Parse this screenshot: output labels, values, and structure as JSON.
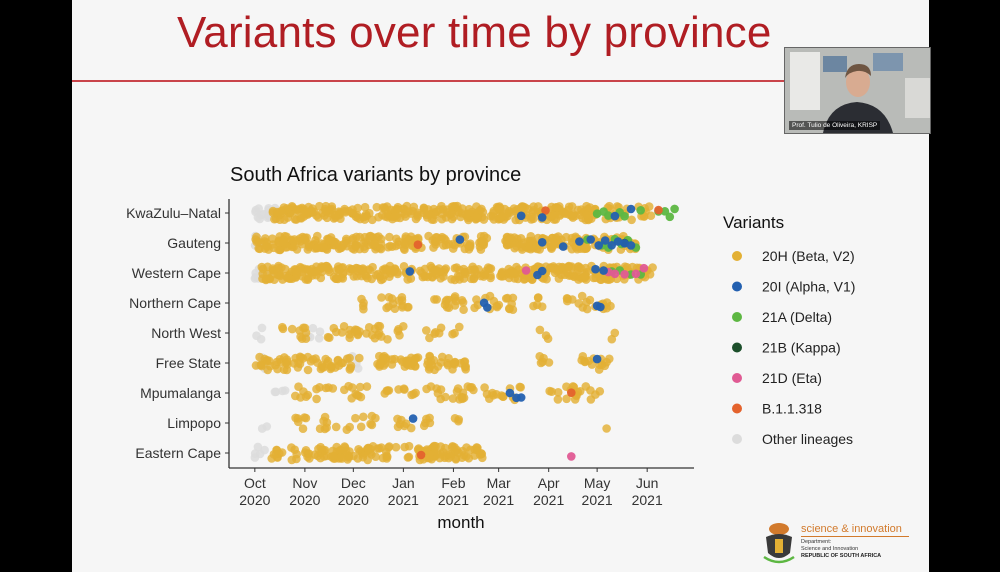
{
  "slide": {
    "title": "Variants over time by province"
  },
  "webcam": {
    "caption": "Prof. Tulio de Oliveira, KRISP"
  },
  "logo": {
    "tagline": "science & innovation",
    "dept": "Department:\nScience and Innovation",
    "country": "REPUBLIC OF SOUTH AFRICA"
  },
  "chart_data": {
    "type": "scatter",
    "title": "South Africa variants by province",
    "xlabel": "month",
    "ylabel": "",
    "x_ticks": [
      {
        "date": "2020-10-01",
        "label": [
          "Oct",
          "2020"
        ]
      },
      {
        "date": "2020-11-01",
        "label": [
          "Nov",
          "2020"
        ]
      },
      {
        "date": "2020-12-01",
        "label": [
          "Dec",
          "2020"
        ]
      },
      {
        "date": "2021-01-01",
        "label": [
          "Jan",
          "2021"
        ]
      },
      {
        "date": "2021-02-01",
        "label": [
          "Feb",
          "2021"
        ]
      },
      {
        "date": "2021-03-01",
        "label": [
          "Mar",
          "2021"
        ]
      },
      {
        "date": "2021-04-01",
        "label": [
          "Apr",
          "2021"
        ]
      },
      {
        "date": "2021-05-01",
        "label": [
          "May",
          "2021"
        ]
      },
      {
        "date": "2021-06-01",
        "label": [
          "Jun",
          "2021"
        ]
      }
    ],
    "xlim": [
      "2020-09-15",
      "2021-06-30"
    ],
    "categories": [
      "KwaZulu–Natal",
      "Gauteng",
      "Western Cape",
      "Northern Cape",
      "North West",
      "Free State",
      "Mpumalanga",
      "Limpopo",
      "Eastern Cape"
    ],
    "legend": {
      "title": "Variants",
      "placement": "right",
      "items": [
        {
          "name": "20H (Beta, V2)",
          "color": "#e3b034"
        },
        {
          "name": "20I (Alpha, V1)",
          "color": "#2360b0"
        },
        {
          "name": "21A (Delta)",
          "color": "#5db742"
        },
        {
          "name": "21B (Kappa)",
          "color": "#1c4f2b"
        },
        {
          "name": "21D (Eta)",
          "color": "#e05a93"
        },
        {
          "name": "B.1.1.318",
          "color": "#e4632d"
        },
        {
          "name": "Other lineages",
          "color": "#dcdcdc"
        }
      ]
    },
    "series": [
      {
        "name": "20H (Beta, V2)",
        "ranges": [
          [
            "KwaZulu–Natal",
            "2020-10-12",
            "2021-02-20",
            190
          ],
          [
            "KwaZulu–Natal",
            "2021-02-22",
            "2021-04-30",
            110
          ],
          [
            "KwaZulu–Natal",
            "2021-05-05",
            "2021-06-05",
            25
          ],
          [
            "Gauteng",
            "2020-10-01",
            "2021-02-22",
            200
          ],
          [
            "Gauteng",
            "2021-03-05",
            "2021-04-25",
            90
          ],
          [
            "Gauteng",
            "2021-04-28",
            "2021-05-25",
            30
          ],
          [
            "Western Cape",
            "2020-10-05",
            "2021-02-25",
            190
          ],
          [
            "Western Cape",
            "2021-03-01",
            "2021-05-15",
            120
          ],
          [
            "Western Cape",
            "2021-05-15",
            "2021-06-05",
            20
          ],
          [
            "Northern Cape",
            "2020-12-03",
            "2020-12-08",
            4
          ],
          [
            "Northern Cape",
            "2020-12-18",
            "2021-01-05",
            14
          ],
          [
            "Northern Cape",
            "2021-01-20",
            "2021-02-18",
            18
          ],
          [
            "Northern Cape",
            "2021-02-20",
            "2021-03-10",
            14
          ],
          [
            "Northern Cape",
            "2021-03-22",
            "2021-03-30",
            5
          ],
          [
            "Northern Cape",
            "2021-04-10",
            "2021-05-10",
            18
          ],
          [
            "North West",
            "2020-10-18",
            "2020-11-10",
            10
          ],
          [
            "North West",
            "2020-11-15",
            "2021-01-02",
            30
          ],
          [
            "North West",
            "2021-01-15",
            "2021-01-25",
            6
          ],
          [
            "North West",
            "2021-01-30",
            "2021-02-05",
            3
          ],
          [
            "North West",
            "2021-03-25",
            "2021-04-02",
            3
          ],
          [
            "North West",
            "2021-05-10",
            "2021-05-12",
            2
          ],
          [
            "Free State",
            "2020-10-01",
            "2020-12-05",
            60
          ],
          [
            "Free State",
            "2020-12-15",
            "2021-02-10",
            60
          ],
          [
            "Free State",
            "2021-03-25",
            "2021-04-02",
            5
          ],
          [
            "Free State",
            "2021-04-20",
            "2021-05-10",
            14
          ],
          [
            "Mpumalanga",
            "2020-10-25",
            "2020-11-20",
            12
          ],
          [
            "Mpumalanga",
            "2020-11-25",
            "2020-12-10",
            10
          ],
          [
            "Mpumalanga",
            "2020-12-20",
            "2021-01-10",
            10
          ],
          [
            "Mpumalanga",
            "2021-01-15",
            "2021-02-15",
            20
          ],
          [
            "Mpumalanga",
            "2021-02-20",
            "2021-03-15",
            14
          ],
          [
            "Mpumalanga",
            "2021-04-01",
            "2021-05-05",
            20
          ],
          [
            "Limpopo",
            "2020-10-25",
            "2020-11-05",
            6
          ],
          [
            "Limpopo",
            "2020-11-10",
            "2020-12-15",
            16
          ],
          [
            "Limpopo",
            "2020-12-28",
            "2021-01-25",
            12
          ],
          [
            "Limpopo",
            "2021-01-30",
            "2021-02-10",
            3
          ],
          [
            "Limpopo",
            "2021-05-05",
            "2021-05-08",
            1
          ],
          [
            "Eastern Cape",
            "2020-10-10",
            "2020-10-30",
            14
          ],
          [
            "Eastern Cape",
            "2020-11-01",
            "2020-12-25",
            70
          ],
          [
            "Eastern Cape",
            "2020-12-25",
            "2021-01-05",
            5
          ],
          [
            "Eastern Cape",
            "2021-01-10",
            "2021-02-20",
            60
          ]
        ]
      },
      {
        "name": "20I (Alpha, V1)",
        "points": [
          [
            "KwaZulu–Natal",
            "2021-03-15"
          ],
          [
            "KwaZulu–Natal",
            "2021-03-28"
          ],
          [
            "KwaZulu–Natal",
            "2021-05-12"
          ],
          [
            "KwaZulu–Natal",
            "2021-05-22"
          ],
          [
            "Gauteng",
            "2021-02-05"
          ],
          [
            "Gauteng",
            "2021-03-28"
          ],
          [
            "Gauteng",
            "2021-04-10"
          ],
          [
            "Gauteng",
            "2021-04-20"
          ],
          [
            "Gauteng",
            "2021-04-27"
          ],
          [
            "Gauteng",
            "2021-05-02"
          ],
          [
            "Gauteng",
            "2021-05-06"
          ],
          [
            "Gauteng",
            "2021-05-10"
          ],
          [
            "Gauteng",
            "2021-05-14"
          ],
          [
            "Gauteng",
            "2021-05-18"
          ],
          [
            "Gauteng",
            "2021-05-22"
          ],
          [
            "Western Cape",
            "2021-01-05"
          ],
          [
            "Western Cape",
            "2021-03-25"
          ],
          [
            "Western Cape",
            "2021-03-28"
          ],
          [
            "Western Cape",
            "2021-04-30"
          ],
          [
            "Western Cape",
            "2021-05-05"
          ],
          [
            "Northern Cape",
            "2021-02-20"
          ],
          [
            "Northern Cape",
            "2021-02-22"
          ],
          [
            "Northern Cape",
            "2021-05-01"
          ],
          [
            "Northern Cape",
            "2021-05-03"
          ],
          [
            "Free State",
            "2021-05-01"
          ],
          [
            "Mpumalanga",
            "2021-03-08"
          ],
          [
            "Mpumalanga",
            "2021-03-12"
          ],
          [
            "Mpumalanga",
            "2021-03-15"
          ],
          [
            "Limpopo",
            "2021-01-07"
          ]
        ]
      },
      {
        "name": "21A (Delta)",
        "points": [
          [
            "KwaZulu–Natal",
            "2021-05-01"
          ],
          [
            "KwaZulu–Natal",
            "2021-05-05"
          ],
          [
            "KwaZulu–Natal",
            "2021-05-08"
          ],
          [
            "KwaZulu–Natal",
            "2021-05-15"
          ],
          [
            "KwaZulu–Natal",
            "2021-05-18"
          ],
          [
            "KwaZulu–Natal",
            "2021-05-28"
          ],
          [
            "KwaZulu–Natal",
            "2021-06-08"
          ],
          [
            "KwaZulu–Natal",
            "2021-06-12"
          ],
          [
            "KwaZulu–Natal",
            "2021-06-15"
          ],
          [
            "KwaZulu–Natal",
            "2021-06-18"
          ],
          [
            "Gauteng",
            "2021-04-25"
          ],
          [
            "Gauteng",
            "2021-05-04"
          ],
          [
            "Gauteng",
            "2021-05-08"
          ],
          [
            "Gauteng",
            "2021-05-12"
          ],
          [
            "Gauteng",
            "2021-05-16"
          ],
          [
            "Gauteng",
            "2021-05-20"
          ],
          [
            "Gauteng",
            "2021-05-25"
          ],
          [
            "Western Cape",
            "2021-05-10"
          ],
          [
            "Western Cape",
            "2021-05-15"
          ],
          [
            "Western Cape",
            "2021-05-22"
          ],
          [
            "Western Cape",
            "2021-05-28"
          ]
        ]
      },
      {
        "name": "21B (Kappa)",
        "points": [
          [
            "Gauteng",
            "2021-05-18"
          ]
        ]
      },
      {
        "name": "21D (Eta)",
        "points": [
          [
            "Western Cape",
            "2021-03-18"
          ],
          [
            "Western Cape",
            "2021-05-08"
          ],
          [
            "Western Cape",
            "2021-05-12"
          ],
          [
            "Western Cape",
            "2021-05-18"
          ],
          [
            "Western Cape",
            "2021-05-25"
          ],
          [
            "Western Cape",
            "2021-05-30"
          ],
          [
            "Eastern Cape",
            "2021-04-15"
          ]
        ]
      },
      {
        "name": "B.1.1.318",
        "points": [
          [
            "KwaZulu–Natal",
            "2021-03-30"
          ],
          [
            "KwaZulu–Natal",
            "2021-06-08"
          ],
          [
            "Gauteng",
            "2021-01-10"
          ],
          [
            "Mpumalanga",
            "2021-04-15"
          ],
          [
            "Eastern Cape",
            "2021-01-12"
          ]
        ]
      },
      {
        "name": "Other lineages",
        "ranges": [
          [
            "KwaZulu–Natal",
            "2020-10-01",
            "2020-10-15",
            15
          ],
          [
            "Gauteng",
            "2020-10-01",
            "2020-10-08",
            6
          ],
          [
            "Western Cape",
            "2020-10-01",
            "2020-10-10",
            10
          ],
          [
            "North West",
            "2020-10-01",
            "2020-10-06",
            3
          ],
          [
            "North West",
            "2020-11-01",
            "2020-11-12",
            5
          ],
          [
            "Free State",
            "2020-10-01",
            "2020-10-08",
            4
          ],
          [
            "Free State",
            "2020-11-25",
            "2020-12-05",
            5
          ],
          [
            "Mpumalanga",
            "2020-10-10",
            "2020-10-20",
            4
          ],
          [
            "Limpopo",
            "2020-10-05",
            "2020-10-10",
            2
          ],
          [
            "Eastern Cape",
            "2020-10-01",
            "2020-10-08",
            5
          ]
        ]
      }
    ]
  }
}
